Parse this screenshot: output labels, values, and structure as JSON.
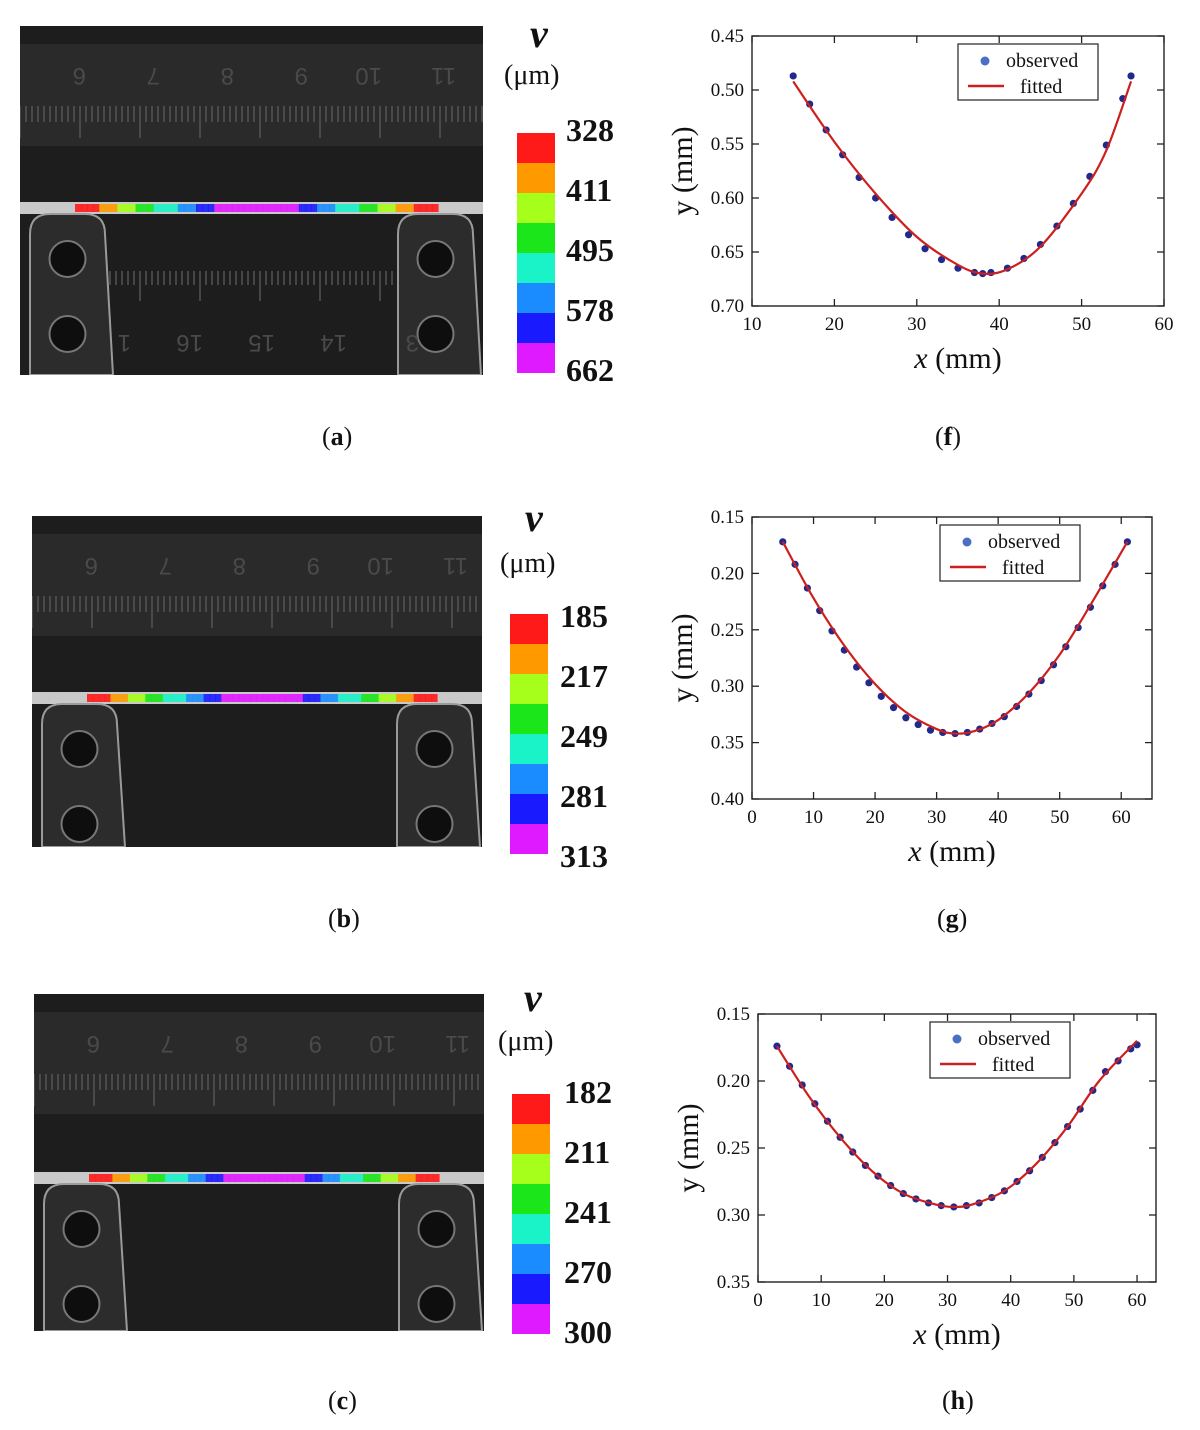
{
  "panels": [
    {
      "caption": {
        "letter": "a"
      },
      "colorbar": {
        "symbol": "v",
        "unit": "(μm)",
        "ticks": [
          "328",
          "411",
          "495",
          "578",
          "662"
        ],
        "colors": [
          "#ff1a1a",
          "#ff9900",
          "#a6ff1a",
          "#1ae61a",
          "#1af2c8",
          "#1a8cff",
          "#1a1aff",
          "#e01aff"
        ]
      },
      "ruler_numbers": [
        "6",
        "7",
        "8",
        "9",
        "10",
        "11"
      ],
      "lower_ruler_numbers": [
        "1",
        "16",
        "15",
        "14",
        "3"
      ]
    },
    {
      "caption": {
        "letter": "b"
      },
      "colorbar": {
        "symbol": "v",
        "unit": "(μm)",
        "ticks": [
          "185",
          "217",
          "249",
          "281",
          "313"
        ],
        "colors": [
          "#ff1a1a",
          "#ff9900",
          "#a6ff1a",
          "#1ae61a",
          "#1af2c8",
          "#1a8cff",
          "#1a1aff",
          "#e01aff"
        ]
      },
      "ruler_numbers": [
        "6",
        "7",
        "8",
        "9",
        "10",
        "11"
      ],
      "lower_ruler_numbers": []
    },
    {
      "caption": {
        "letter": "c"
      },
      "colorbar": {
        "symbol": "v",
        "unit": "(μm)",
        "ticks": [
          "182",
          "211",
          "241",
          "270",
          "300"
        ],
        "colors": [
          "#ff1a1a",
          "#ff9900",
          "#a6ff1a",
          "#1ae61a",
          "#1af2c8",
          "#1a8cff",
          "#1a1aff",
          "#e01aff"
        ]
      },
      "ruler_numbers": [
        "6",
        "7",
        "8",
        "9",
        "10",
        "11"
      ],
      "lower_ruler_numbers": []
    }
  ],
  "chart_data": [
    {
      "type": "scatter",
      "panel": "f",
      "xlabel_var": "x",
      "xlabel_unit": " (mm)",
      "ylabel": "y (mm)",
      "xlim": [
        10,
        60
      ],
      "ylim": [
        0.45,
        0.7
      ],
      "y_inverted": true,
      "xticks": [
        10,
        20,
        30,
        40,
        50,
        60
      ],
      "yticks": [
        0.45,
        0.5,
        0.55,
        0.6,
        0.65,
        0.7
      ],
      "ytick_labels": [
        "0.45",
        "0.50",
        "0.55",
        "0.60",
        "0.65",
        "0.70"
      ],
      "legend": {
        "position": "top-right",
        "entries": [
          "observed",
          "fitted"
        ]
      },
      "series": [
        {
          "name": "observed",
          "color": "#1f2a8c",
          "x": [
            15,
            17,
            19,
            21,
            23,
            25,
            27,
            29,
            31,
            33,
            35,
            37,
            38,
            39,
            41,
            43,
            45,
            47,
            49,
            51,
            53,
            55,
            56
          ],
          "y": [
            0.487,
            0.513,
            0.537,
            0.56,
            0.581,
            0.6,
            0.618,
            0.634,
            0.647,
            0.657,
            0.665,
            0.669,
            0.67,
            0.669,
            0.665,
            0.656,
            0.643,
            0.626,
            0.605,
            0.58,
            0.551,
            0.508,
            0.487
          ]
        },
        {
          "name": "fitted",
          "color": "#cc1f1f",
          "x": [
            15,
            20,
            25,
            30,
            35,
            38,
            41,
            45,
            50,
            53,
            56
          ],
          "y": [
            0.492,
            0.548,
            0.596,
            0.636,
            0.662,
            0.67,
            0.666,
            0.645,
            0.596,
            0.556,
            0.492
          ]
        }
      ]
    },
    {
      "type": "scatter",
      "panel": "g",
      "xlabel_var": "x",
      "xlabel_unit": " (mm)",
      "ylabel": "y (mm)",
      "xlim": [
        0,
        65
      ],
      "ylim": [
        0.15,
        0.4
      ],
      "y_inverted": true,
      "xticks": [
        0,
        10,
        20,
        30,
        40,
        50,
        60
      ],
      "yticks": [
        0.15,
        0.2,
        0.25,
        0.3,
        0.35,
        0.4
      ],
      "ytick_labels": [
        "0.15",
        "0.20",
        "0.25",
        "0.30",
        "0.35",
        "0.40"
      ],
      "legend": {
        "position": "top-right",
        "entries": [
          "observed",
          "fitted"
        ]
      },
      "series": [
        {
          "name": "observed",
          "color": "#1f2a8c",
          "x": [
            5,
            7,
            9,
            11,
            13,
            15,
            17,
            19,
            21,
            23,
            25,
            27,
            29,
            31,
            33,
            35,
            37,
            39,
            41,
            43,
            45,
            47,
            49,
            51,
            53,
            55,
            57,
            59,
            61
          ],
          "y": [
            0.172,
            0.192,
            0.213,
            0.233,
            0.251,
            0.268,
            0.283,
            0.297,
            0.309,
            0.319,
            0.328,
            0.334,
            0.339,
            0.341,
            0.342,
            0.341,
            0.338,
            0.333,
            0.327,
            0.318,
            0.307,
            0.295,
            0.281,
            0.265,
            0.248,
            0.23,
            0.211,
            0.192,
            0.172
          ]
        },
        {
          "name": "fitted",
          "color": "#cc1f1f",
          "x": [
            5,
            10,
            15,
            20,
            25,
            30,
            33,
            36,
            40,
            45,
            50,
            55,
            61
          ],
          "y": [
            0.172,
            0.222,
            0.264,
            0.298,
            0.323,
            0.338,
            0.342,
            0.34,
            0.33,
            0.306,
            0.272,
            0.228,
            0.172
          ]
        }
      ]
    },
    {
      "type": "scatter",
      "panel": "h",
      "xlabel_var": "x",
      "xlabel_unit": " (mm)",
      "ylabel": "y (mm)",
      "xlim": [
        0,
        63
      ],
      "ylim": [
        0.15,
        0.35
      ],
      "y_inverted": true,
      "xticks": [
        0,
        10,
        20,
        30,
        40,
        50,
        60
      ],
      "yticks": [
        0.15,
        0.2,
        0.25,
        0.3,
        0.35
      ],
      "ytick_labels": [
        "0.15",
        "0.20",
        "0.25",
        "0.30",
        "0.35"
      ],
      "legend": {
        "position": "top-right",
        "entries": [
          "observed",
          "fitted"
        ]
      },
      "series": [
        {
          "name": "observed",
          "color": "#1f2a8c",
          "x": [
            3,
            5,
            7,
            9,
            11,
            13,
            15,
            17,
            19,
            21,
            23,
            25,
            27,
            29,
            31,
            33,
            35,
            37,
            39,
            41,
            43,
            45,
            47,
            49,
            51,
            53,
            55,
            57,
            59,
            60
          ],
          "y": [
            0.174,
            0.189,
            0.203,
            0.217,
            0.23,
            0.242,
            0.253,
            0.263,
            0.271,
            0.278,
            0.284,
            0.288,
            0.291,
            0.293,
            0.294,
            0.293,
            0.291,
            0.287,
            0.282,
            0.275,
            0.267,
            0.257,
            0.246,
            0.234,
            0.221,
            0.207,
            0.193,
            0.185,
            0.176,
            0.173
          ]
        },
        {
          "name": "fitted",
          "color": "#cc1f1f",
          "x": [
            3,
            8,
            13,
            18,
            23,
            28,
            31,
            34,
            39,
            44,
            49,
            54,
            60
          ],
          "y": [
            0.174,
            0.211,
            0.242,
            0.267,
            0.284,
            0.292,
            0.294,
            0.292,
            0.282,
            0.262,
            0.234,
            0.2,
            0.17
          ]
        }
      ]
    }
  ]
}
